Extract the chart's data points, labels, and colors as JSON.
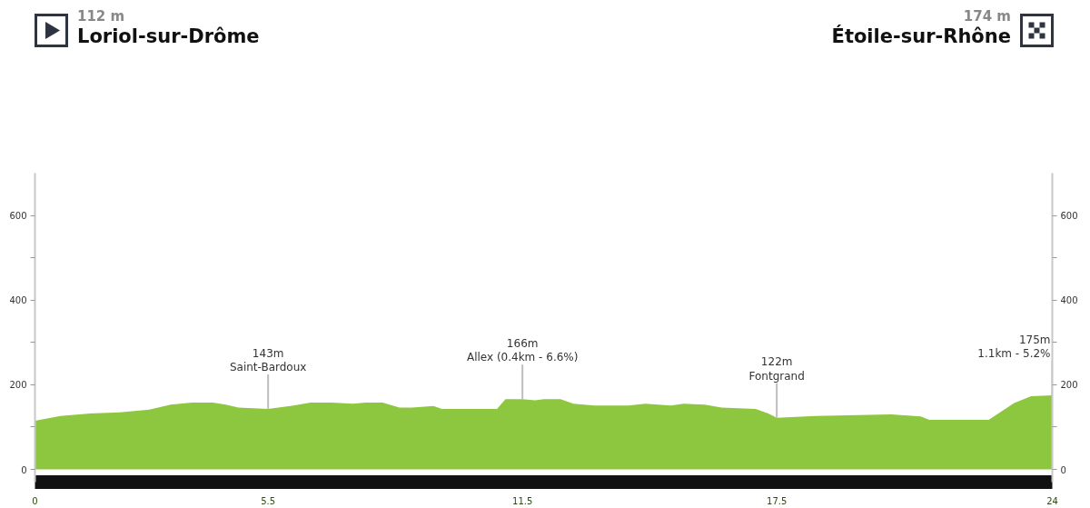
{
  "chart_data": {
    "type": "area",
    "color": "#8dc63f",
    "x": [
      0,
      0.6,
      1.3,
      2.0,
      2.7,
      3.2,
      3.7,
      4.2,
      4.5,
      4.8,
      5.5,
      6.1,
      6.5,
      7.0,
      7.5,
      7.8,
      8.2,
      8.6,
      8.9,
      9.4,
      9.6,
      10.9,
      11.1,
      11.5,
      11.8,
      12.0,
      12.4,
      12.7,
      13.2,
      14.0,
      14.4,
      15.0,
      15.3,
      15.8,
      16.2,
      17.0,
      17.3,
      17.5,
      18.4,
      20.2,
      20.9,
      21.1,
      22.5,
      22.8,
      23.1,
      23.5,
      24.0
    ],
    "values": [
      115,
      126,
      132,
      135,
      141,
      153,
      158,
      158,
      153,
      146,
      143,
      151,
      158,
      158,
      155,
      158,
      158,
      146,
      146,
      150,
      143,
      143,
      166,
      166,
      163,
      166,
      166,
      155,
      151,
      151,
      155,
      151,
      155,
      153,
      146,
      143,
      132,
      122,
      126,
      130,
      125,
      117,
      117,
      137,
      157,
      173,
      175
    ],
    "xlim": [
      0,
      24
    ],
    "xticks": [
      0,
      5.5,
      11.5,
      17.5,
      24
    ],
    "ylim": [
      -30,
      700
    ],
    "yticks": [
      0,
      {
        "value": 100,
        "label": null
      },
      200,
      {
        "value": 300,
        "label": null
      },
      400,
      {
        "value": 500,
        "label": null
      },
      600
    ],
    "y2lim": [
      -30,
      700
    ],
    "y2ticks": [
      0,
      {
        "value": 100,
        "label": null
      },
      200,
      {
        "value": 300,
        "label": null
      },
      400,
      {
        "value": 500,
        "label": null
      },
      600
    ],
    "annotations": [
      "112 m",
      "Loriol-sur-Drôme",
      "174 m",
      "Étoile-sur-Rhône",
      {
        "text": "143m\nSaint-Bardoux",
        "x": 5.5,
        "y": 143
      },
      {
        "text": "166m\nAllex (0.4km - 6.6%)",
        "x": 11.5,
        "y": 166
      },
      {
        "text": "122m\nFontgrand",
        "x": 17.5,
        "y": 122
      },
      {
        "text": "175m\n1.1km - 5.2%",
        "x": 24,
        "y": 175
      }
    ]
  }
}
